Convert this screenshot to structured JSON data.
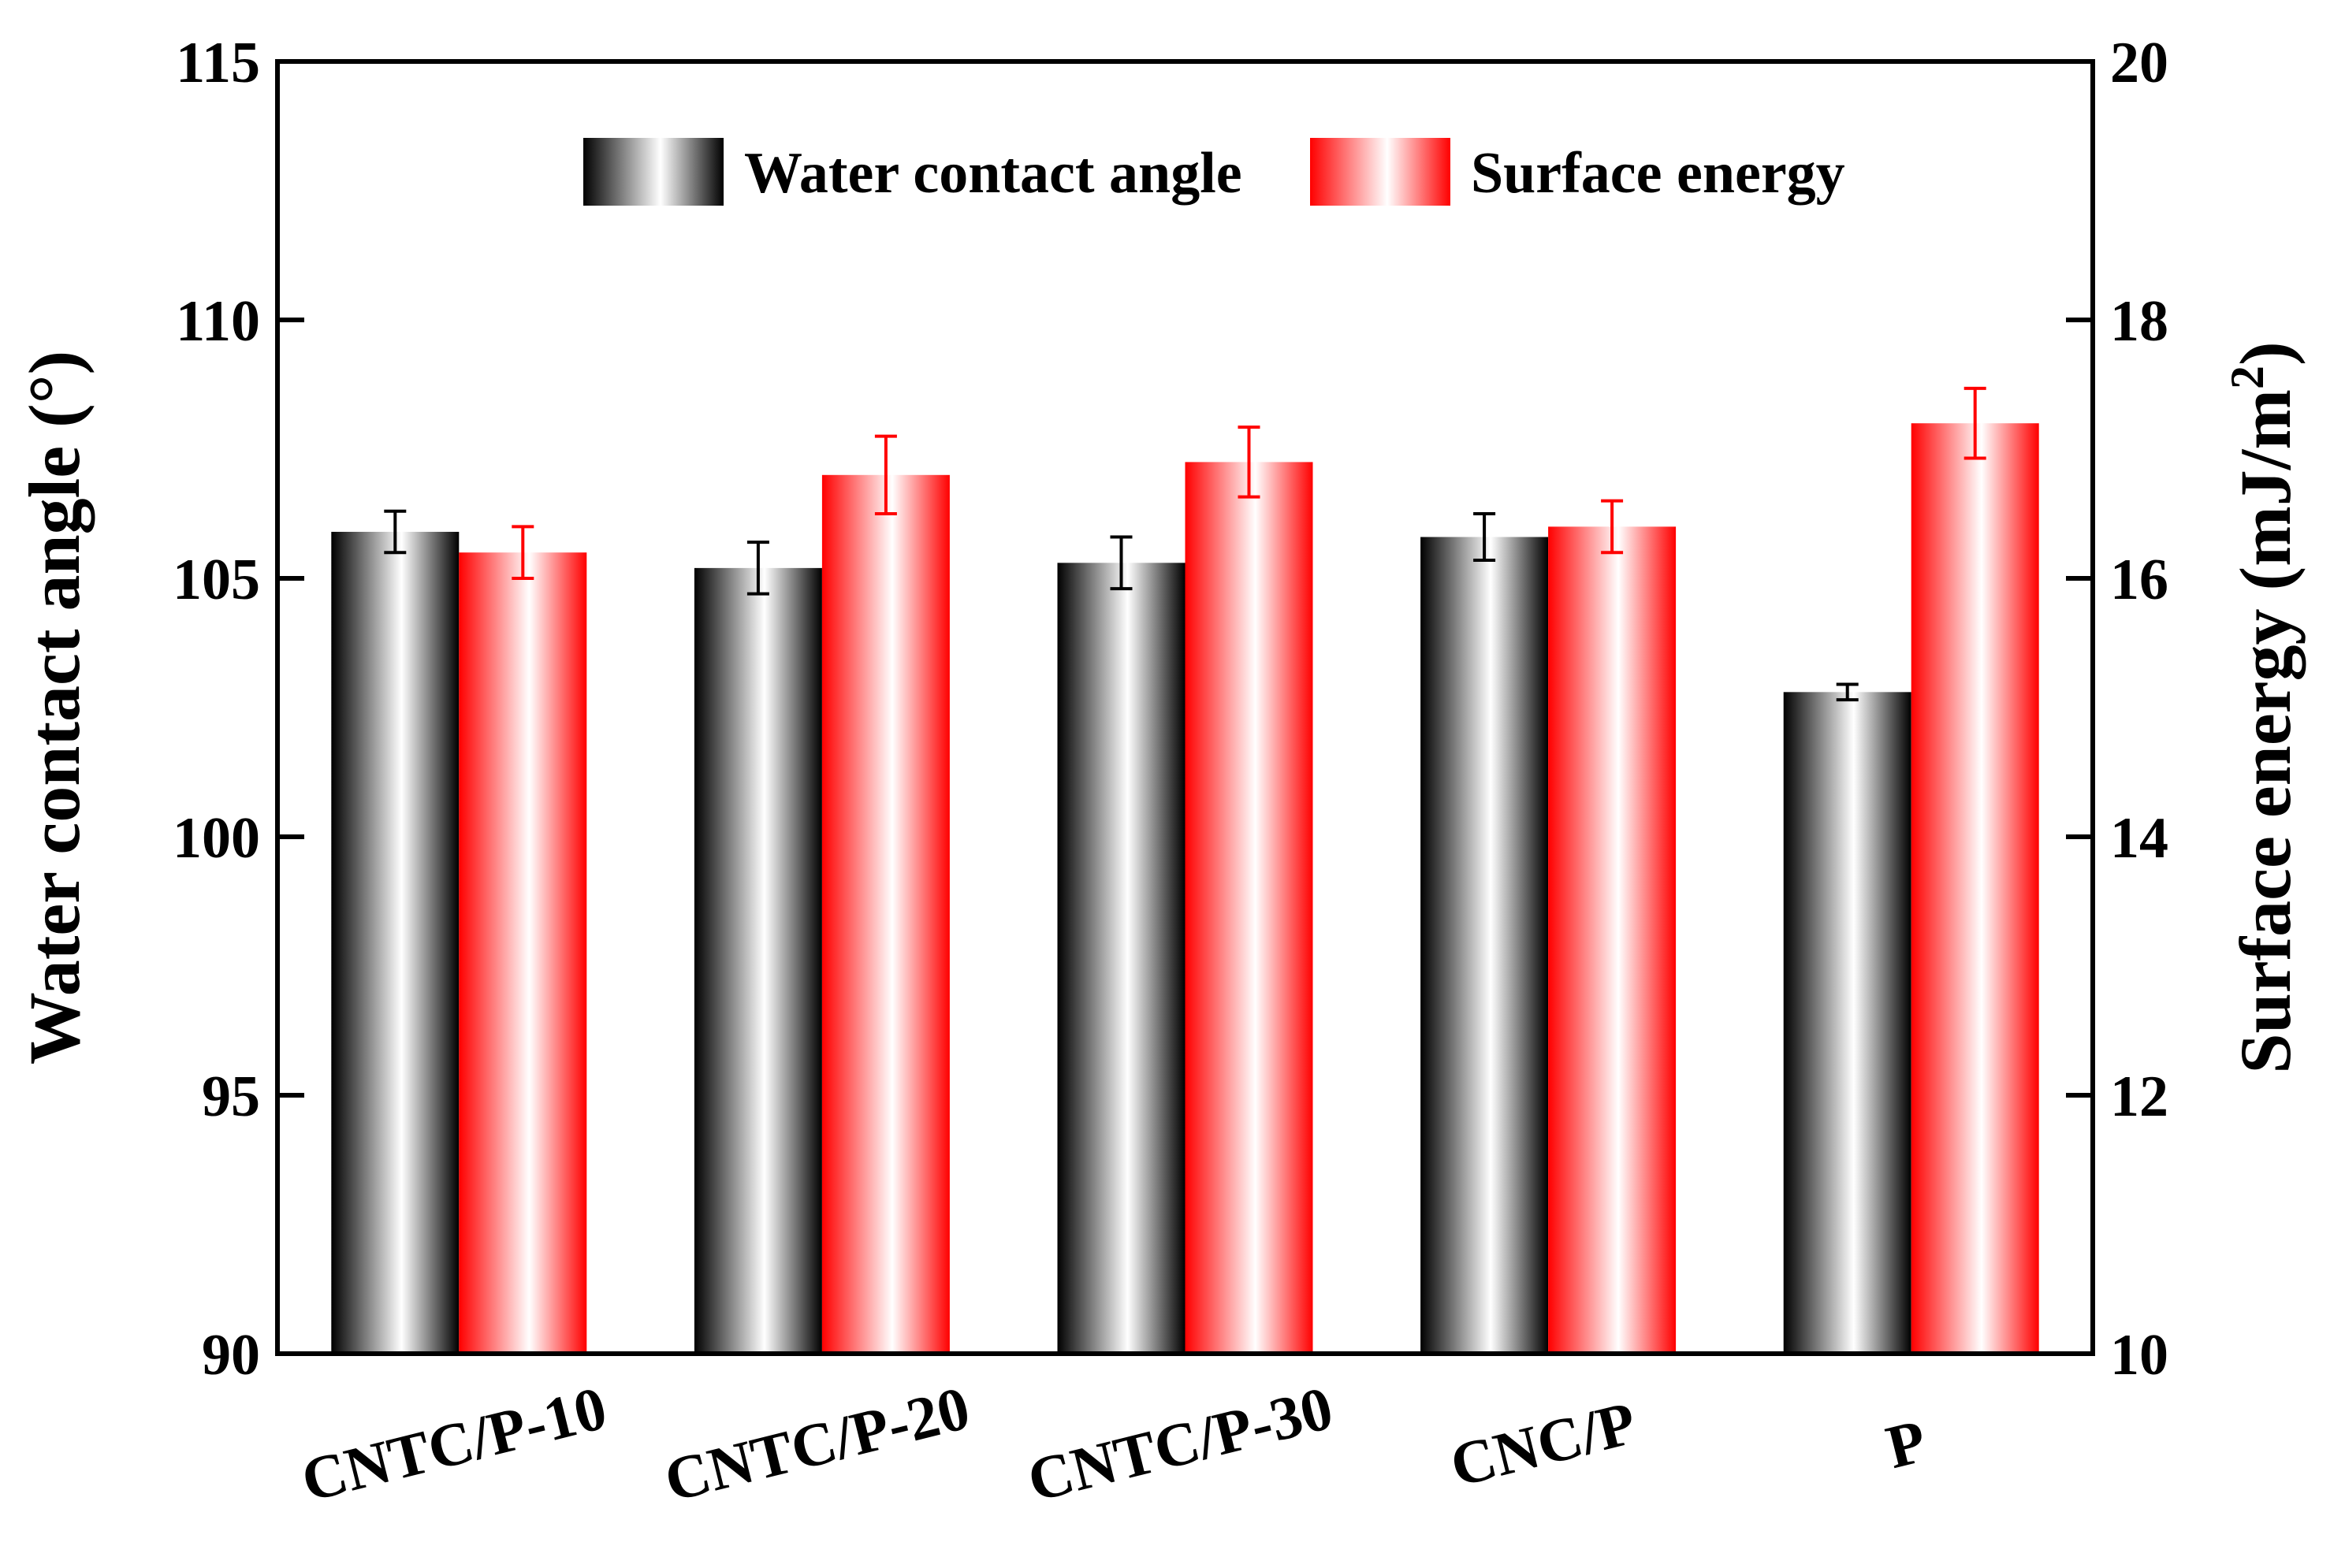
{
  "chart_data": {
    "type": "bar",
    "categories": [
      "CNTC/P-10",
      "CNTC/P-20",
      "CNTC/P-30",
      "CNC/P",
      "P"
    ],
    "series": [
      {
        "name": "Water contact angle",
        "axis": "left",
        "values": [
          105.9,
          105.2,
          105.3,
          105.8,
          102.8
        ],
        "errors": [
          0.4,
          0.5,
          0.5,
          0.45,
          0.15
        ],
        "color_dark": "#000000",
        "color_light": "#ffffff"
      },
      {
        "name": "Surface energy",
        "axis": "right",
        "values": [
          16.2,
          16.8,
          16.9,
          16.4,
          17.2
        ],
        "errors": [
          0.2,
          0.3,
          0.27,
          0.2,
          0.27
        ],
        "color_dark": "#ff0000",
        "color_light": "#ffffff"
      }
    ],
    "y_left": {
      "label": "Water contact angle (°)",
      "ylim": [
        90,
        115
      ],
      "ticks": [
        "90",
        "95",
        "100",
        "105",
        "110",
        "115"
      ]
    },
    "y_right": {
      "label_main": "Surface energy (mJ/m",
      "label_sup": "2",
      "label_end": ")",
      "ylim": [
        10,
        20
      ],
      "ticks": [
        "10",
        "12",
        "14",
        "16",
        "18",
        "20"
      ]
    },
    "xlabel": "",
    "title": "",
    "legend": [
      "Water contact angle",
      "Surface energy"
    ],
    "legend_position": "top-center",
    "grid": false
  }
}
